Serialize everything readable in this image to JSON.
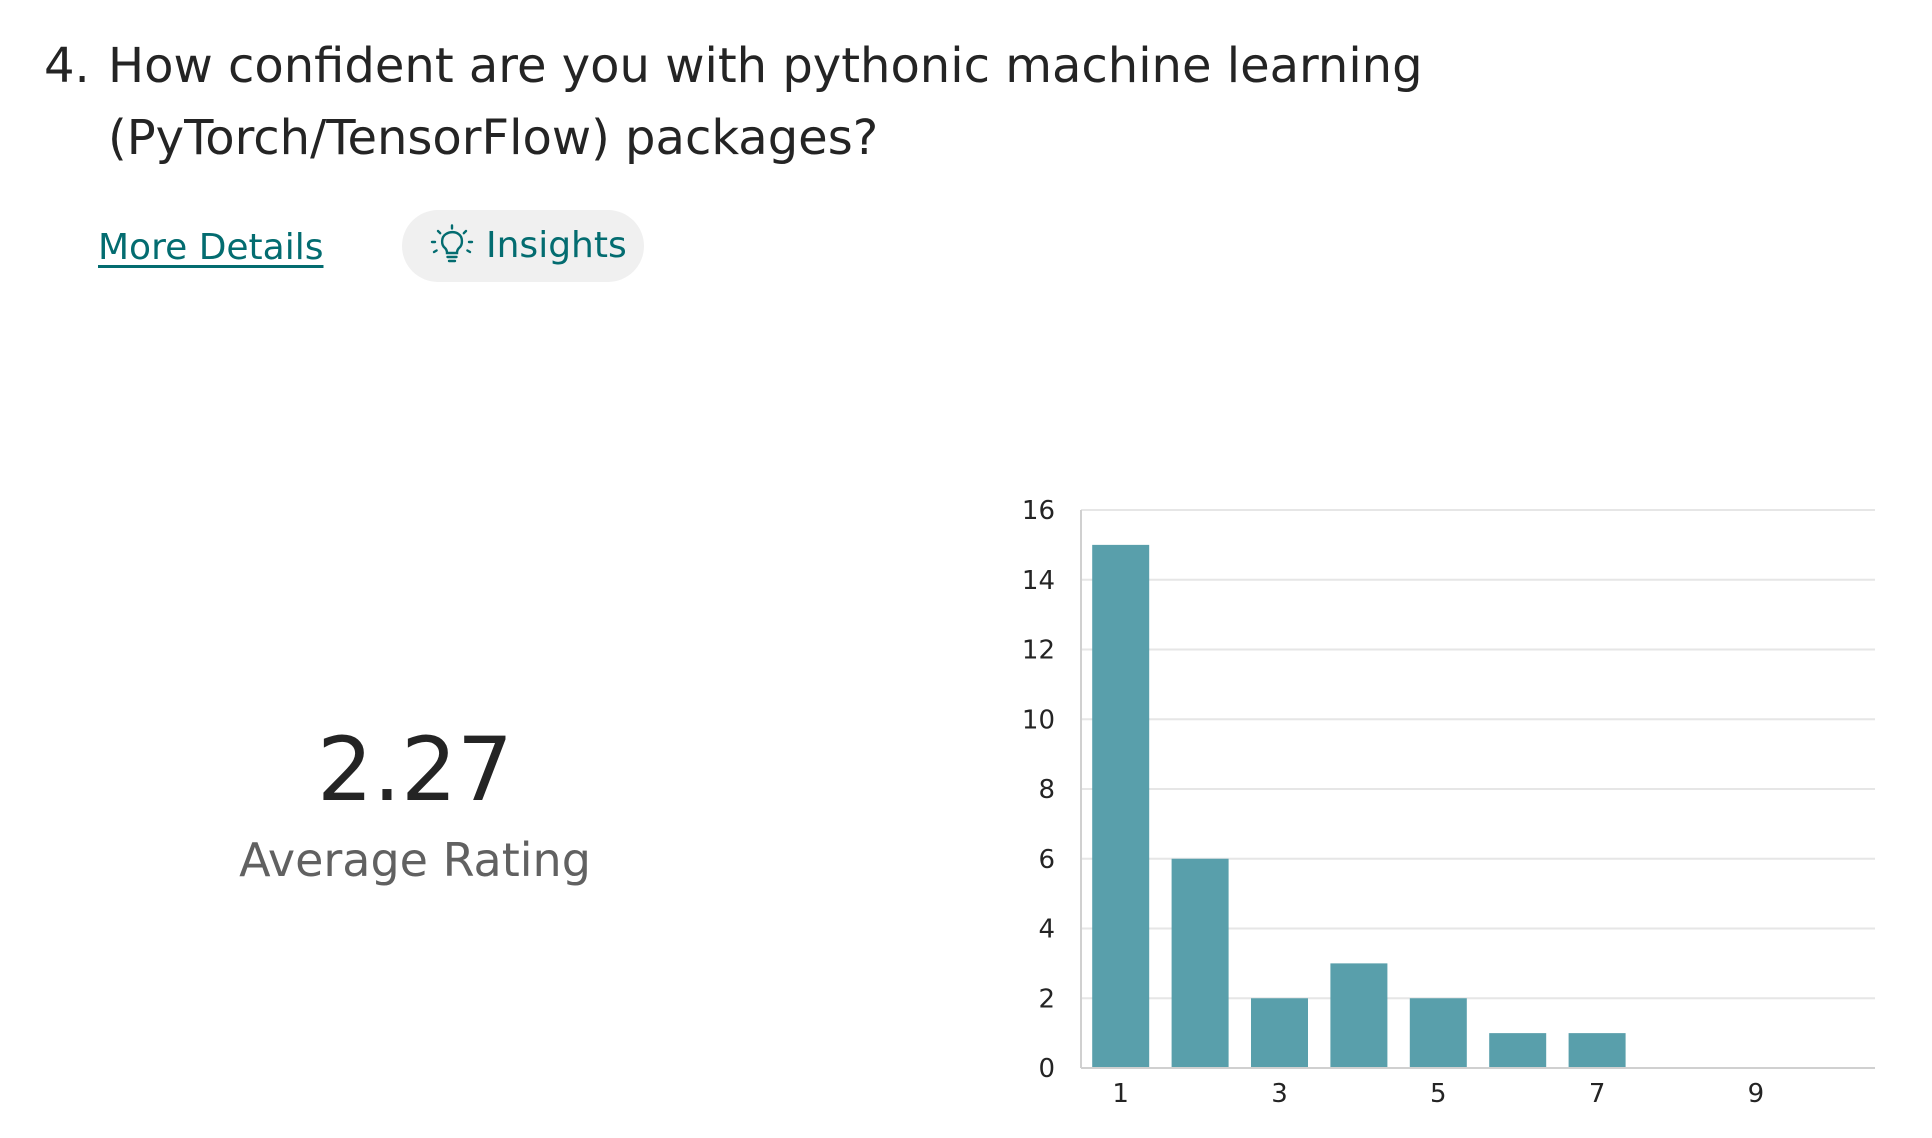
{
  "question": {
    "number": "4.",
    "text": "How confident are you with pythonic machine learning (PyTorch/TensorFlow) packages?"
  },
  "actions": {
    "more_details": "More Details",
    "insights": "Insights",
    "insights_icon": "lightbulb-icon"
  },
  "summary": {
    "average_value": "2.27",
    "average_label": "Average Rating"
  },
  "colors": {
    "bar": "#599fab",
    "link": "#036c70",
    "grid": "#e6e6e6"
  },
  "chart_data": {
    "type": "bar",
    "categories": [
      "1",
      "2",
      "3",
      "4",
      "5",
      "6",
      "7",
      "8",
      "9",
      "10"
    ],
    "x_tick_labels": [
      "1",
      "",
      "3",
      "",
      "5",
      "",
      "7",
      "",
      "9",
      ""
    ],
    "values": [
      15,
      6,
      2,
      3,
      2,
      1,
      1,
      0,
      0,
      0
    ],
    "y_ticks": [
      0,
      2,
      4,
      6,
      8,
      10,
      12,
      14,
      16
    ],
    "ylim": [
      0,
      16
    ],
    "grid": true,
    "title": "",
    "xlabel": "",
    "ylabel": ""
  }
}
